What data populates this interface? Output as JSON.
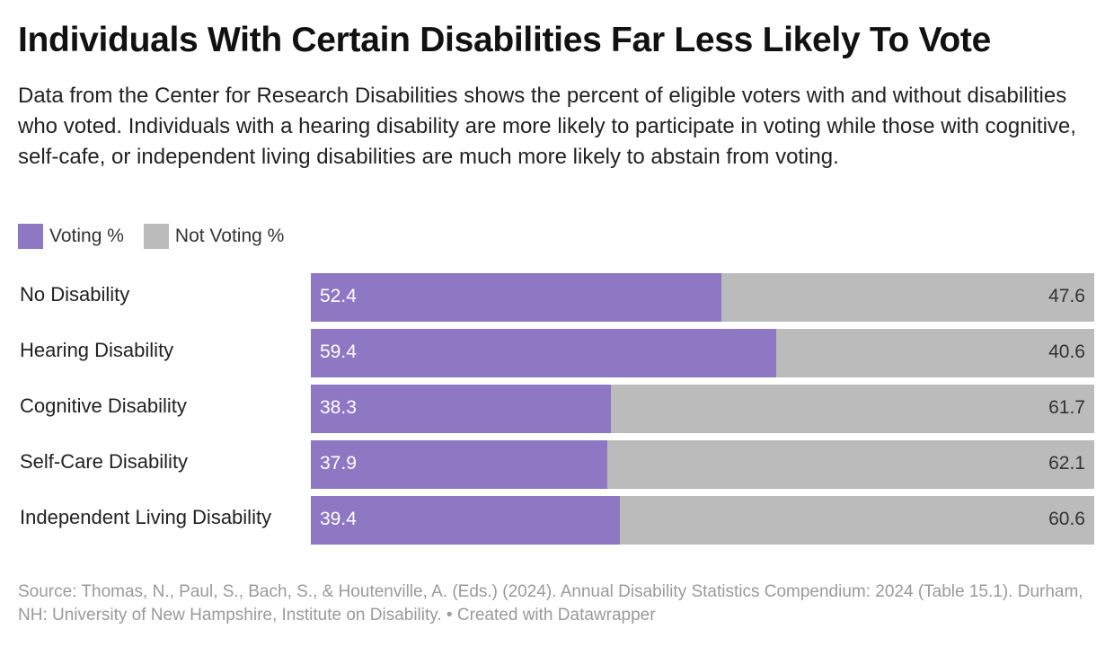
{
  "header": {
    "title": "Individuals With Certain Disabilities Far Less Likely To Vote",
    "subtitle": "Data from the Center for Research Disabilities shows the percent of eligible voters with and without disabilities who voted. Individuals with a hearing disability are more likely to participate in voting while those with cognitive, self-cafe, or independent living disabilities are much more likely to abstain from voting."
  },
  "legend": {
    "items": [
      {
        "label": "Voting %",
        "color": "#8e77c3"
      },
      {
        "label": "Not Voting %",
        "color": "#bbbbbb"
      }
    ]
  },
  "chart_data": {
    "type": "bar",
    "orientation": "horizontal",
    "stacked": true,
    "title": "Individuals With Certain Disabilities Far Less Likely To Vote",
    "categories": [
      "No Disability",
      "Hearing Disability",
      "Cognitive Disability",
      "Self-Care Disability",
      "Independent Living Disability"
    ],
    "series": [
      {
        "name": "Voting %",
        "color": "#8e77c3",
        "values": [
          52.4,
          59.4,
          38.3,
          37.9,
          39.4
        ]
      },
      {
        "name": "Not Voting %",
        "color": "#bbbbbb",
        "values": [
          47.6,
          40.6,
          61.7,
          62.1,
          60.6
        ]
      }
    ],
    "xlim": [
      0,
      100
    ],
    "grid": false,
    "legend_position": "top-left"
  },
  "footer": {
    "source": "Source: Thomas, N., Paul, S., Bach, S., & Houtenville, A. (Eds.) (2024). Annual Disability Statistics Compendium: 2024 (Table 15.1). Durham, NH: University of New Hampshire, Institute on Disability. • Created with Datawrapper"
  }
}
